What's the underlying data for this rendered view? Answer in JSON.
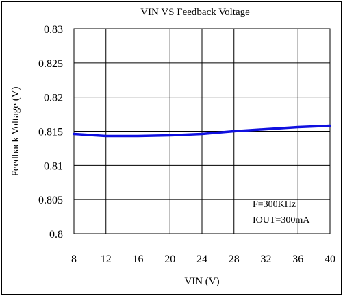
{
  "chart_data": {
    "type": "line",
    "title": "VIN VS Feedback Voltage",
    "xlabel": "VIN (V)",
    "ylabel": "Feedback Voltage (V)",
    "xlim": [
      8,
      40
    ],
    "ylim": [
      0.8,
      0.83
    ],
    "x_ticks": [
      "8",
      "12",
      "16",
      "20",
      "24",
      "28",
      "32",
      "36",
      "40"
    ],
    "y_ticks": [
      "0.83",
      "0.825",
      "0.82",
      "0.815",
      "0.81",
      "0.805",
      "0.8"
    ],
    "grid": true,
    "series": [
      {
        "x": [
          8,
          12,
          16,
          20,
          24,
          28,
          32,
          36,
          40
        ],
        "y": [
          0.8146,
          0.8143,
          0.8143,
          0.8144,
          0.8146,
          0.815,
          0.8153,
          0.8156,
          0.8158
        ],
        "color": "#1010e0"
      }
    ],
    "annotations": [
      "F=300KHz",
      "IOUT=300mA"
    ]
  }
}
